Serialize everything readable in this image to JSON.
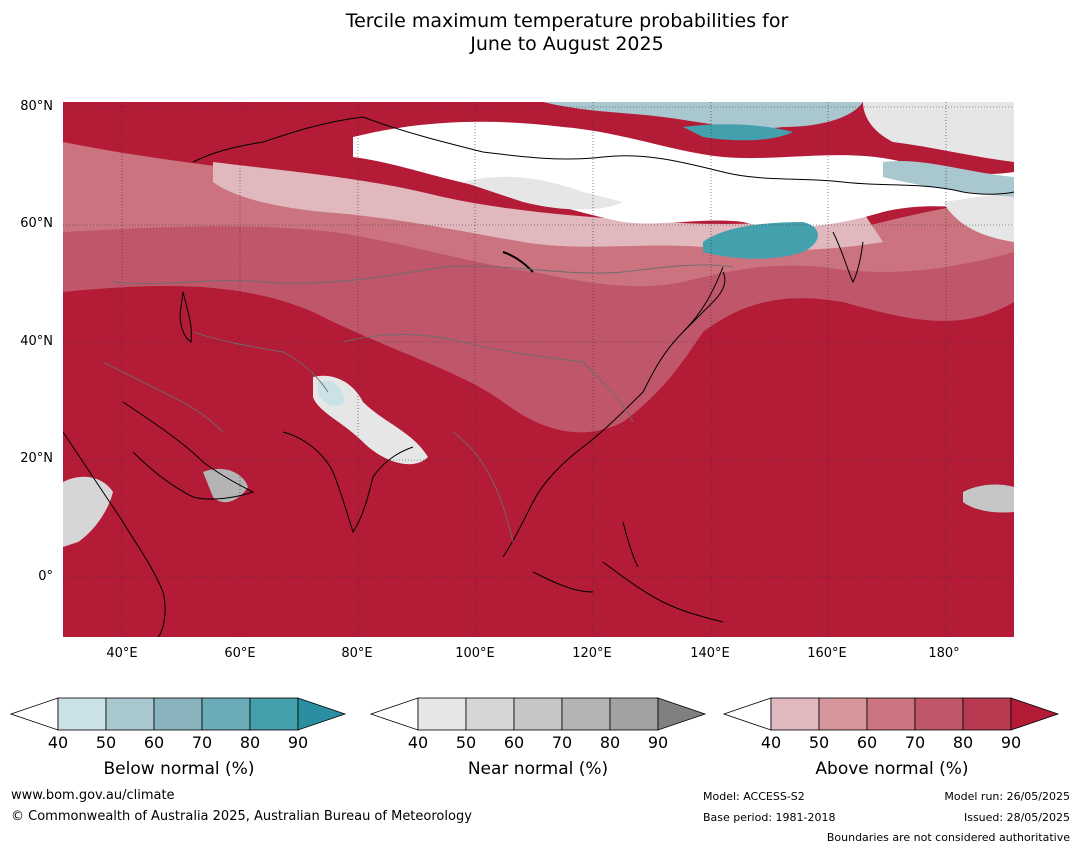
{
  "title_line1": "Tercile maximum temperature probabilities for",
  "title_line2": "June to August 2025",
  "lat_labels": [
    "80°N",
    "60°N",
    "40°N",
    "20°N",
    "0°"
  ],
  "lon_labels": [
    "40°E",
    "60°E",
    "80°E",
    "100°E",
    "120°E",
    "140°E",
    "160°E",
    "180°"
  ],
  "map": {
    "extent": {
      "lon_min": 30,
      "lon_max": 191,
      "lat_min": -10,
      "lat_max": 81
    },
    "grid": {
      "lon_step": 20,
      "lat_step": 20
    }
  },
  "colorbars": [
    {
      "label": "Below normal (%)",
      "ticks": [
        "40",
        "50",
        "60",
        "70",
        "80",
        "90"
      ],
      "colors": [
        "#ffffff",
        "#cae1e6",
        "#a9c7ce",
        "#88b3bf",
        "#6babb8",
        "#45a0ae",
        "#2a8fa0"
      ]
    },
    {
      "label": "Near normal (%)",
      "ticks": [
        "40",
        "50",
        "60",
        "70",
        "80",
        "90"
      ],
      "colors": [
        "#ffffff",
        "#e6e6e6",
        "#d6d6d6",
        "#c6c6c6",
        "#b4b4b4",
        "#a2a2a2",
        "#808080"
      ]
    },
    {
      "label": "Above normal (%)",
      "ticks": [
        "40",
        "50",
        "60",
        "70",
        "80",
        "90"
      ],
      "colors": [
        "#ffffff",
        "#e0b8bd",
        "#d6949b",
        "#cb737f",
        "#c0566a",
        "#b73a50",
        "#b31b37"
      ]
    }
  ],
  "footer": {
    "website": "www.bom.gov.au/climate",
    "copyright": "© Commonwealth of Australia 2025, Australian Bureau of Meteorology",
    "model": "Model: ACCESS-S2",
    "base_period": "Base period: 1981-2018",
    "model_run": "Model run: 26/05/2025",
    "issued": "Issued: 28/05/2025",
    "boundaries": "Boundaries are not considered authoritative"
  }
}
